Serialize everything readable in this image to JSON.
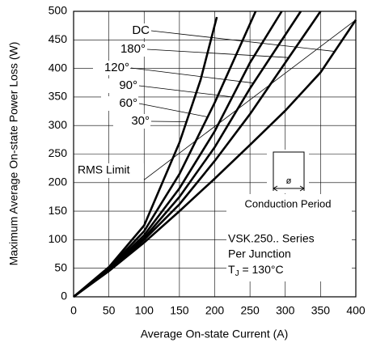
{
  "chart_data": {
    "type": "line",
    "xlabel": "Average  On-state  Current  (A)",
    "ylabel": "Maximum  Average  On-state  Power  Loss  (W)",
    "xlim": [
      0,
      400
    ],
    "xticks": [
      0,
      50,
      100,
      150,
      200,
      250,
      300,
      350,
      400
    ],
    "ylim": [
      0,
      500
    ],
    "yticks": [
      0,
      50,
      100,
      150,
      200,
      250,
      300,
      350,
      400,
      450,
      500
    ],
    "grid": true,
    "series": [
      {
        "name": "DC",
        "color": "#000000",
        "x": [
          0,
          50,
          100,
          150,
          200,
          250,
          300,
          350,
          400
        ],
        "values": [
          0,
          45,
          95,
          150,
          207,
          266,
          326,
          393,
          485
        ]
      },
      {
        "name": "180°",
        "color": "#000000",
        "x": [
          0,
          50,
          100,
          150,
          200,
          250,
          300,
          350
        ],
        "values": [
          0,
          46,
          100,
          162,
          238,
          320,
          410,
          500
        ]
      },
      {
        "name": "120°",
        "color": "#000000",
        "x": [
          0,
          50,
          100,
          150,
          200,
          250,
          322
        ],
        "values": [
          0,
          47,
          103,
          175,
          262,
          365,
          500
        ]
      },
      {
        "name": "90°",
        "color": "#000000",
        "x": [
          0,
          50,
          100,
          150,
          200,
          250,
          295
        ],
        "values": [
          0,
          48,
          108,
          190,
          290,
          410,
          500
        ]
      },
      {
        "name": "60°",
        "color": "#000000",
        "x": [
          0,
          50,
          100,
          150,
          200,
          258
        ],
        "values": [
          0,
          50,
          115,
          215,
          340,
          500
        ]
      },
      {
        "name": "30°",
        "color": "#000000",
        "x": [
          0,
          50,
          100,
          150,
          180,
          203
        ],
        "values": [
          0,
          52,
          125,
          270,
          380,
          490
        ]
      }
    ],
    "rms_limit": {
      "name": "RMS  Limit",
      "x": [
        100,
        400
      ],
      "values": [
        205,
        485
      ]
    },
    "annotations": {
      "conduction": "Conduction  Period",
      "phi": "ø",
      "device": "VSK.250..  Series",
      "junction": "Per  Junction",
      "tj": "T",
      "tj_sub": "J",
      "tj_rest": " = 130°C"
    }
  }
}
